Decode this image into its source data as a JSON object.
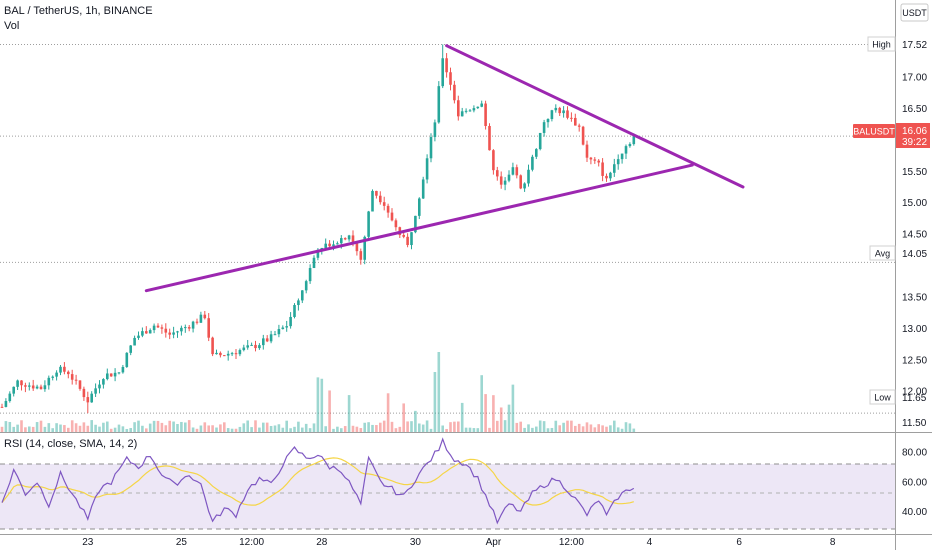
{
  "header": {
    "title": "BAL / TetherUS, 1h, BINANCE",
    "volume_label": "Vol"
  },
  "currency_button": "USDT",
  "rsi_label": "RSI (14, close, SMA, 14, 2)",
  "colors": {
    "up": "#26a69a",
    "down": "#ef5350",
    "trendline": "#9c27b0",
    "rsi_line": "#7e57c2",
    "rsi_ma": "#f5d547",
    "rsi_band": "#ede7f6",
    "price_tag": "#ef5350"
  },
  "price_axis": {
    "ticks": [
      "17.00",
      "16.50",
      "15.50",
      "15.00",
      "14.50",
      "13.50",
      "13.00",
      "12.50",
      "12.00",
      "11.50"
    ],
    "high_label": "High",
    "high_value": "17.52",
    "avg_label": "Avg",
    "avg_value": "14.05",
    "low_label": "Low",
    "low_value": "11.65",
    "symbol_tag": "BALUSDT",
    "last_price": "16.06",
    "countdown": "39:22"
  },
  "rsi_axis": {
    "ticks": [
      "80.00",
      "60.00",
      "40.00"
    ]
  },
  "time_axis": {
    "labels": [
      "23",
      "25",
      "12:00",
      "28",
      "30",
      "Apr",
      "12:00",
      "4",
      "6",
      "8"
    ]
  },
  "chart_data": {
    "type": "candlestick",
    "symbol": "BAL / TetherUS",
    "interval": "1h",
    "exchange": "BINANCE",
    "price_range": [
      11.35,
      17.75
    ],
    "price_high": 17.52,
    "price_avg": 14.05,
    "price_low": 11.65,
    "last_price": 16.06,
    "price_anchors": [
      {
        "t": 0,
        "p": 11.75
      },
      {
        "t": 4,
        "p": 12.15
      },
      {
        "t": 10,
        "p": 12.05
      },
      {
        "t": 14,
        "p": 12.35
      },
      {
        "t": 17,
        "p": 12.3
      },
      {
        "t": 22,
        "p": 11.85
      },
      {
        "t": 26,
        "p": 12.25
      },
      {
        "t": 30,
        "p": 12.3
      },
      {
        "t": 34,
        "p": 12.85
      },
      {
        "t": 39,
        "p": 13.05
      },
      {
        "t": 43,
        "p": 12.9
      },
      {
        "t": 48,
        "p": 13.05
      },
      {
        "t": 52,
        "p": 13.2
      },
      {
        "t": 54,
        "p": 12.55
      },
      {
        "t": 58,
        "p": 12.6
      },
      {
        "t": 64,
        "p": 12.7
      },
      {
        "t": 69,
        "p": 12.85
      },
      {
        "t": 73,
        "p": 13.05
      },
      {
        "t": 77,
        "p": 13.6
      },
      {
        "t": 81,
        "p": 14.3
      },
      {
        "t": 86,
        "p": 14.4
      },
      {
        "t": 89,
        "p": 14.5
      },
      {
        "t": 92,
        "p": 14.1
      },
      {
        "t": 95,
        "p": 15.2
      },
      {
        "t": 98,
        "p": 15.0
      },
      {
        "t": 101,
        "p": 14.6
      },
      {
        "t": 104,
        "p": 14.3
      },
      {
        "t": 108,
        "p": 15.4
      },
      {
        "t": 111,
        "p": 16.3
      },
      {
        "t": 113,
        "p": 17.3
      },
      {
        "t": 115,
        "p": 16.9
      },
      {
        "t": 117,
        "p": 16.4
      },
      {
        "t": 120,
        "p": 16.5
      },
      {
        "t": 123,
        "p": 16.6
      },
      {
        "t": 126,
        "p": 15.5
      },
      {
        "t": 128,
        "p": 15.3
      },
      {
        "t": 131,
        "p": 15.6
      },
      {
        "t": 133,
        "p": 15.2
      },
      {
        "t": 136,
        "p": 15.7
      },
      {
        "t": 139,
        "p": 16.3
      },
      {
        "t": 142,
        "p": 16.5
      },
      {
        "t": 145,
        "p": 16.4
      },
      {
        "t": 148,
        "p": 16.2
      },
      {
        "t": 150,
        "p": 15.7
      },
      {
        "t": 153,
        "p": 15.6
      },
      {
        "t": 155,
        "p": 15.35
      },
      {
        "t": 158,
        "p": 15.75
      },
      {
        "t": 162,
        "p": 16.06
      }
    ],
    "trendlines": [
      {
        "name": "upper",
        "from": {
          "t": 114,
          "p": 17.5
        },
        "to": {
          "t": 190,
          "p": 15.25
        }
      },
      {
        "name": "lower",
        "from": {
          "t": 37,
          "p": 13.6
        },
        "to": {
          "t": 177,
          "p": 15.6
        }
      }
    ],
    "horizontal_levels": [
      17.52,
      16.06,
      14.05,
      11.65
    ],
    "rsi": {
      "length": 14,
      "source": "close",
      "smoothing": "SMA",
      "ma_length": 14,
      "bands": [
        70,
        30
      ],
      "range": [
        25,
        88
      ],
      "anchors": [
        {
          "t": 0,
          "v": 45
        },
        {
          "t": 3,
          "v": 68
        },
        {
          "t": 6,
          "v": 52
        },
        {
          "t": 9,
          "v": 60
        },
        {
          "t": 12,
          "v": 45
        },
        {
          "t": 15,
          "v": 65
        },
        {
          "t": 18,
          "v": 52
        },
        {
          "t": 22,
          "v": 35
        },
        {
          "t": 25,
          "v": 55
        },
        {
          "t": 28,
          "v": 60
        },
        {
          "t": 32,
          "v": 75
        },
        {
          "t": 35,
          "v": 70
        },
        {
          "t": 38,
          "v": 78
        },
        {
          "t": 41,
          "v": 65
        },
        {
          "t": 44,
          "v": 58
        },
        {
          "t": 48,
          "v": 65
        },
        {
          "t": 51,
          "v": 58
        },
        {
          "t": 54,
          "v": 33
        },
        {
          "t": 57,
          "v": 42
        },
        {
          "t": 60,
          "v": 38
        },
        {
          "t": 63,
          "v": 55
        },
        {
          "t": 66,
          "v": 62
        },
        {
          "t": 69,
          "v": 58
        },
        {
          "t": 72,
          "v": 72
        },
        {
          "t": 75,
          "v": 82
        },
        {
          "t": 78,
          "v": 76
        },
        {
          "t": 81,
          "v": 78
        },
        {
          "t": 84,
          "v": 70
        },
        {
          "t": 87,
          "v": 68
        },
        {
          "t": 90,
          "v": 55
        },
        {
          "t": 92,
          "v": 45
        },
        {
          "t": 94,
          "v": 75
        },
        {
          "t": 97,
          "v": 60
        },
        {
          "t": 100,
          "v": 55
        },
        {
          "t": 103,
          "v": 50
        },
        {
          "t": 106,
          "v": 62
        },
        {
          "t": 109,
          "v": 72
        },
        {
          "t": 112,
          "v": 82
        },
        {
          "t": 113,
          "v": 87
        },
        {
          "t": 116,
          "v": 75
        },
        {
          "t": 119,
          "v": 72
        },
        {
          "t": 122,
          "v": 62
        },
        {
          "t": 125,
          "v": 45
        },
        {
          "t": 127,
          "v": 33
        },
        {
          "t": 130,
          "v": 45
        },
        {
          "t": 133,
          "v": 40
        },
        {
          "t": 136,
          "v": 52
        },
        {
          "t": 139,
          "v": 58
        },
        {
          "t": 142,
          "v": 62
        },
        {
          "t": 145,
          "v": 55
        },
        {
          "t": 148,
          "v": 45
        },
        {
          "t": 150,
          "v": 38
        },
        {
          "t": 153,
          "v": 48
        },
        {
          "t": 155,
          "v": 37
        },
        {
          "t": 158,
          "v": 50
        },
        {
          "t": 162,
          "v": 57
        }
      ]
    }
  }
}
